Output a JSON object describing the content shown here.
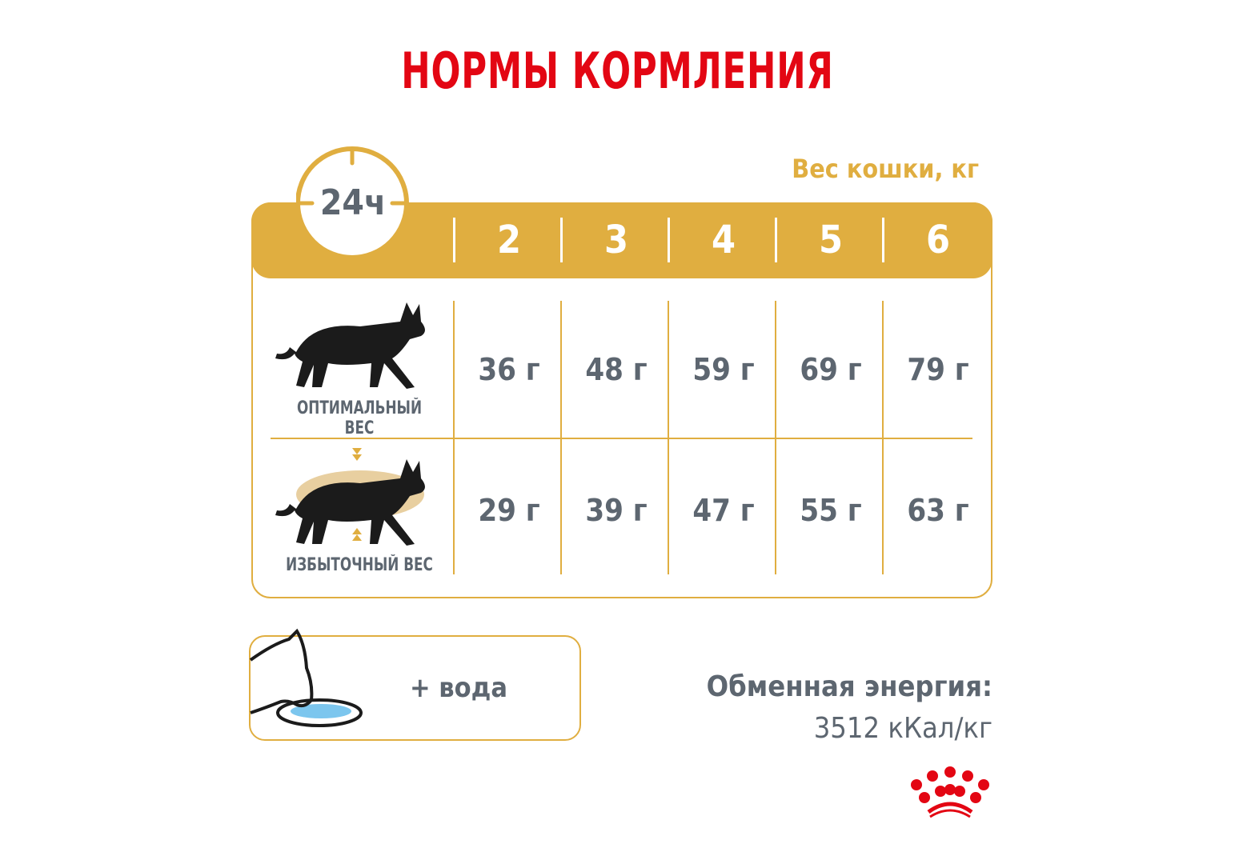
{
  "title": "НОРМЫ КОРМЛЕНИЯ",
  "period": "24ч",
  "weight_header": "Вес кошки, кг",
  "weights": [
    "2",
    "3",
    "4",
    "5",
    "6"
  ],
  "rows": [
    {
      "label": "ОПТИМАЛЬНЫЙ ВЕС",
      "icon": "cat-silhouette-icon",
      "values": [
        "36 г",
        "48 г",
        "59 г",
        "69 г",
        "79 г"
      ]
    },
    {
      "label": "ИЗБЫТОЧНЫЙ ВЕС",
      "icon": "overweight-cat-icon",
      "values": [
        "29 г",
        "39 г",
        "47 г",
        "55 г",
        "63 г"
      ]
    }
  ],
  "water": "+ вода",
  "energy": {
    "title": "Обменная энергия:",
    "value": "3512 кКал/кг"
  },
  "colors": {
    "accent": "#e0ae40",
    "title": "#e30613",
    "text": "#5d6670"
  }
}
